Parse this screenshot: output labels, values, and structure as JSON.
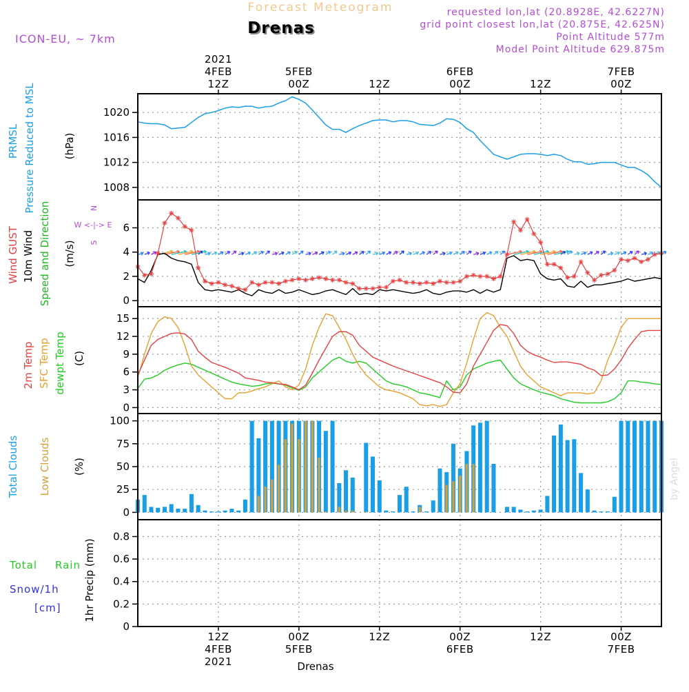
{
  "header": {
    "super_title": "Forecast Meteogram",
    "title": "Drenas",
    "model": "ICON-EU, ~ 7km",
    "info": [
      "requested lon,lat (20.8928E, 42.6227N)",
      "grid point closest lon,lat (20.875E, 42.625N)",
      "Point Altitude 577m",
      "Model Point Altitude 629.875m"
    ],
    "footer_label": "Drenas",
    "watermark": "by Angel"
  },
  "time_axis": {
    "top_labels": [
      {
        "h": 12,
        "lines": [
          "2021",
          "4FEB",
          "12Z"
        ]
      },
      {
        "h": 24,
        "lines": [
          "5FEB",
          "00Z"
        ]
      },
      {
        "h": 36,
        "lines": [
          "12Z"
        ]
      },
      {
        "h": 48,
        "lines": [
          "6FEB",
          "00Z"
        ]
      },
      {
        "h": 60,
        "lines": [
          "12Z"
        ]
      },
      {
        "h": 72,
        "lines": [
          "7FEB",
          "00Z"
        ]
      }
    ],
    "bottom_labels": [
      {
        "h": 12,
        "lines": [
          "12Z",
          "4FEB",
          "2021"
        ]
      },
      {
        "h": 24,
        "lines": [
          "00Z",
          "5FEB"
        ]
      },
      {
        "h": 36,
        "lines": [
          "12Z"
        ]
      },
      {
        "h": 48,
        "lines": [
          "00Z",
          "6FEB"
        ]
      },
      {
        "h": 60,
        "lines": [
          "12Z"
        ]
      },
      {
        "h": 72,
        "lines": [
          "00Z",
          "7FEB"
        ]
      }
    ]
  },
  "panels": {
    "pressure": {
      "label_main": "PRMSL",
      "label_sub": "Pressure Reduced to MSL",
      "unit": "(hPa)",
      "color": "#1a9fe6",
      "ticks": [
        "1008",
        "1012",
        "1016",
        "1020"
      ]
    },
    "wind": {
      "label_gust": "Wind GUST",
      "label_wind": "10m Wind",
      "label_dir": "Speed and Direction",
      "unit": "(m/s)",
      "compass": [
        "N",
        "W <-|-> E",
        "S"
      ],
      "ticks": [
        "0",
        "2",
        "4",
        "6"
      ]
    },
    "temp": {
      "label_2m": "2m Temp",
      "label_sfc": "SFC Temp",
      "label_dew": "dewpt Temp",
      "unit": "(C)",
      "ticks": [
        "0",
        "3",
        "6",
        "9",
        "12",
        "15"
      ]
    },
    "clouds": {
      "label_total": "Total Clouds",
      "label_low": "Low Clouds",
      "unit": "(%)",
      "ticks": [
        "0",
        "25",
        "50",
        "75",
        "100"
      ]
    },
    "precip": {
      "label_rain_a": "Total",
      "label_rain_b": "Rain",
      "label_snow": "Snow/1h",
      "label_cm": "[cm]",
      "unit": "1hr Precip (mm)",
      "ticks": [
        "0",
        "0.2",
        "0.4",
        "0.6",
        "0.8"
      ]
    }
  },
  "colors": {
    "pressure": "#1a9fe6",
    "gust": "#e84040",
    "wind": "#000000",
    "direction_label": "#22b822",
    "temp2m": "#e84040",
    "sfc": "#e6a030",
    "dew": "#22cc22",
    "total_cloud": "#1a9fe6",
    "low_cloud": "#d4a03c",
    "rain": "#22cc22",
    "snow": "#3030e0",
    "info": "#b44cd8",
    "super_title": "#f2c890",
    "grid": "#999999"
  },
  "chart_data": [
    {
      "type": "line",
      "name": "pressure",
      "x": [
        0,
        1,
        2,
        3,
        4,
        5,
        6,
        7,
        8,
        9,
        10,
        11,
        12,
        13,
        14,
        15,
        16,
        17,
        18,
        19,
        20,
        21,
        22,
        23,
        24,
        25,
        26,
        27,
        28,
        29,
        30,
        31,
        32,
        33,
        34,
        35,
        36,
        37,
        38,
        39,
        40,
        41,
        42,
        43,
        44,
        45,
        46,
        47,
        48,
        49,
        50,
        51,
        52,
        53,
        54,
        55,
        56,
        57,
        58,
        59,
        60,
        61,
        62,
        63,
        64,
        65,
        66,
        67,
        68,
        69,
        70,
        71,
        72,
        73,
        74,
        75,
        76,
        77,
        78
      ],
      "series": [
        {
          "values": [
            1018.5,
            1018.3,
            1018.2,
            1018.2,
            1018.0,
            1017.4,
            1017.5,
            1017.6,
            1018.4,
            1019.2,
            1019.8,
            1020.0,
            1020.3,
            1020.7,
            1020.9,
            1020.8,
            1021.0,
            1021.0,
            1020.7,
            1020.9,
            1021.0,
            1021.5,
            1021.9,
            1022.5,
            1022.1,
            1021.5,
            1020.4,
            1019.2,
            1018.0,
            1017.3,
            1017.3,
            1016.8,
            1017.4,
            1017.9,
            1018.3,
            1018.7,
            1018.8,
            1018.8,
            1018.5,
            1018.7,
            1018.7,
            1018.5,
            1018.1,
            1018.0,
            1017.9,
            1018.3,
            1019.0,
            1018.9,
            1018.4,
            1017.4,
            1016.8,
            1015.5,
            1014.4,
            1013.3,
            1012.9,
            1012.5,
            1012.9,
            1013.3,
            1013.4,
            1013.4,
            1013.3,
            1013.1,
            1013.3,
            1013.1,
            1012.5,
            1012.1,
            1012.1,
            1011.7,
            1011.8,
            1012.0,
            1012.0,
            1012.0,
            1011.6,
            1011.2,
            1011.2,
            1010.7,
            1010.0,
            1008.9,
            1008.0
          ]
        }
      ],
      "ylim": [
        1006,
        1023
      ]
    },
    {
      "type": "line",
      "name": "wind",
      "x": [
        0,
        1,
        2,
        3,
        4,
        5,
        6,
        7,
        8,
        9,
        10,
        11,
        12,
        13,
        14,
        15,
        16,
        17,
        18,
        19,
        20,
        21,
        22,
        23,
        24,
        25,
        26,
        27,
        28,
        29,
        30,
        31,
        32,
        33,
        34,
        35,
        36,
        37,
        38,
        39,
        40,
        41,
        42,
        43,
        44,
        45,
        46,
        47,
        48,
        49,
        50,
        51,
        52,
        53,
        54,
        55,
        56,
        57,
        58,
        59,
        60,
        61,
        62,
        63,
        64,
        65,
        66,
        67,
        68,
        69,
        70,
        71,
        72,
        73,
        74,
        75,
        76,
        77,
        78
      ],
      "series": [
        {
          "values": [
            2.8,
            2.1,
            2.2,
            3.9,
            6.4,
            7.2,
            6.8,
            6.1,
            5.8,
            2.7,
            1.6,
            1.4,
            1.5,
            1.3,
            1.2,
            1.0,
            0.9,
            1.5,
            1.3,
            1.5,
            1.5,
            1.4,
            1.6,
            1.7,
            1.8,
            1.7,
            1.8,
            1.9,
            1.8,
            1.7,
            1.7,
            1.5,
            1.4,
            1.0,
            1.0,
            1.0,
            1.1,
            1.1,
            1.6,
            1.7,
            1.5,
            1.5,
            1.4,
            1.5,
            1.4,
            1.6,
            1.5,
            1.5,
            1.6,
            2.0,
            2.1,
            2.0,
            2.0,
            1.8,
            2.0,
            3.8,
            6.5,
            5.8,
            6.7,
            5.5,
            4.8,
            3.0,
            3.0,
            2.7,
            1.9,
            2.0,
            3.2,
            2.3,
            1.7,
            2.1,
            2.2,
            2.5,
            3.4,
            3.3,
            3.5,
            3.2,
            3.4,
            3.8,
            3.9
          ]
        },
        {
          "values": [
            1.8,
            1.5,
            2.5,
            3.8,
            3.9,
            3.5,
            3.3,
            3.2,
            3.0,
            1.5,
            0.9,
            0.8,
            0.9,
            0.8,
            0.7,
            0.9,
            0.6,
            0.4,
            0.9,
            0.7,
            0.6,
            0.9,
            0.6,
            0.7,
            0.9,
            0.7,
            0.5,
            0.6,
            0.8,
            0.9,
            0.7,
            0.5,
            1.0,
            0.5,
            0.6,
            0.5,
            0.9,
            0.8,
            0.9,
            0.8,
            0.7,
            0.6,
            0.7,
            0.9,
            0.6,
            0.5,
            0.7,
            0.8,
            0.8,
            0.7,
            0.9,
            0.6,
            0.9,
            0.7,
            0.9,
            3.5,
            3.7,
            3.3,
            3.4,
            3.3,
            2.2,
            1.8,
            1.7,
            1.8,
            1.2,
            1.1,
            1.6,
            1.1,
            1.3,
            1.3,
            1.4,
            1.5,
            1.6,
            1.8,
            1.6,
            1.7,
            1.8,
            1.9,
            1.8
          ]
        }
      ],
      "ylim": [
        -0.5,
        8.3
      ]
    },
    {
      "type": "line",
      "name": "temperature",
      "x": [
        0,
        1,
        2,
        3,
        4,
        5,
        6,
        7,
        8,
        9,
        10,
        11,
        12,
        13,
        14,
        15,
        16,
        17,
        18,
        19,
        20,
        21,
        22,
        23,
        24,
        25,
        26,
        27,
        28,
        29,
        30,
        31,
        32,
        33,
        34,
        35,
        36,
        37,
        38,
        39,
        40,
        41,
        42,
        43,
        44,
        45,
        46,
        47,
        48,
        49,
        50,
        51,
        52,
        53,
        54,
        55,
        56,
        57,
        58,
        59,
        60,
        61,
        62,
        63,
        64,
        65,
        66,
        67,
        68,
        69,
        70,
        71,
        72,
        73,
        74,
        75,
        76,
        77,
        78
      ],
      "series": [
        {
          "values": [
            5.5,
            8.0,
            10.5,
            11.5,
            12.0,
            12.5,
            12.6,
            12.4,
            11.5,
            9.5,
            8.5,
            7.6,
            7.2,
            6.8,
            6.3,
            5.8,
            5.0,
            4.8,
            4.6,
            4.3,
            4.2,
            4.0,
            3.9,
            3.5,
            3.0,
            3.8,
            5.8,
            8.0,
            10.0,
            12.0,
            12.8,
            12.8,
            12.2,
            10.5,
            9.5,
            8.5,
            8.0,
            7.5,
            7.0,
            6.6,
            6.2,
            5.8,
            5.4,
            5.0,
            4.6,
            4.2,
            3.5,
            2.6,
            2.5,
            4.0,
            7.0,
            9.0,
            11.0,
            13.0,
            14.0,
            13.8,
            12.5,
            10.5,
            9.5,
            8.9,
            8.5,
            8.0,
            7.6,
            7.7,
            7.7,
            7.5,
            7.3,
            6.7,
            6.3,
            5.4,
            5.5,
            6.5,
            8.0,
            10.0,
            11.5,
            12.8,
            13.0,
            13.0,
            13.0
          ]
        },
        {
          "values": [
            5.0,
            9.0,
            12.5,
            14.5,
            15.3,
            15.0,
            13.5,
            10.5,
            7.0,
            5.5,
            4.5,
            3.5,
            2.5,
            1.5,
            1.5,
            2.5,
            2.5,
            2.8,
            3.2,
            3.5,
            4.0,
            4.5,
            3.5,
            3.0,
            3.8,
            6.5,
            10.5,
            13.5,
            15.8,
            15.5,
            13.5,
            11.5,
            9.0,
            7.0,
            5.5,
            4.5,
            3.5,
            3.0,
            2.8,
            2.5,
            2.0,
            1.5,
            0.5,
            0.3,
            0.5,
            0.2,
            0.5,
            2.5,
            4.0,
            7.5,
            11.5,
            15.0,
            16.0,
            15.5,
            13.5,
            12.0,
            9.5,
            7.0,
            5.5,
            4.5,
            3.5,
            3.0,
            2.5,
            2.0,
            2.5,
            2.5,
            2.5,
            2.3,
            2.5,
            4.5,
            8.0,
            10.5,
            13.5,
            15.0,
            15.0,
            15.0,
            15.0,
            15.0,
            15.0
          ]
        },
        {
          "values": [
            3.2,
            4.8,
            5.0,
            5.5,
            6.3,
            6.8,
            7.2,
            7.5,
            7.3,
            6.8,
            6.3,
            5.8,
            5.3,
            4.8,
            4.3,
            4.0,
            3.8,
            3.6,
            3.7,
            4.0,
            4.1,
            4.0,
            3.8,
            3.3,
            2.9,
            3.5,
            5.0,
            6.0,
            7.0,
            8.0,
            8.5,
            7.8,
            7.5,
            7.8,
            7.5,
            6.5,
            5.5,
            4.5,
            4.0,
            3.8,
            3.5,
            3.0,
            2.5,
            2.3,
            2.0,
            1.7,
            4.5,
            3.0,
            3.5,
            5.5,
            6.5,
            7.0,
            7.5,
            7.8,
            8.0,
            6.5,
            5.0,
            4.0,
            3.5,
            3.0,
            2.6,
            2.3,
            2.0,
            1.5,
            1.2,
            0.9,
            0.8,
            0.8,
            0.8,
            0.8,
            1.0,
            1.5,
            2.5,
            4.5,
            4.5,
            4.3,
            4.2,
            4.0,
            3.9
          ]
        }
      ],
      "ylim": [
        -1,
        17
      ]
    },
    {
      "type": "bar",
      "name": "clouds",
      "x": [
        0,
        1,
        2,
        3,
        4,
        5,
        6,
        7,
        8,
        9,
        10,
        11,
        12,
        13,
        14,
        15,
        16,
        17,
        18,
        19,
        20,
        21,
        22,
        23,
        24,
        25,
        26,
        27,
        28,
        29,
        30,
        31,
        32,
        33,
        34,
        35,
        36,
        37,
        38,
        39,
        40,
        41,
        42,
        43,
        44,
        45,
        46,
        47,
        48,
        49,
        50,
        51,
        52,
        53,
        54,
        55,
        56,
        57,
        58,
        59,
        60,
        61,
        62,
        63,
        64,
        65,
        66,
        67,
        68,
        69,
        70,
        71,
        72,
        73,
        74,
        75,
        76,
        77,
        78
      ],
      "series": [
        {
          "name": "Total Clouds",
          "values": [
            14,
            19,
            6,
            5,
            6,
            9,
            4,
            4,
            20,
            8,
            2,
            1,
            1,
            2,
            4,
            2,
            14,
            100,
            81,
            100,
            100,
            100,
            100,
            100,
            100,
            100,
            100,
            100,
            89,
            100,
            32,
            46,
            38,
            0,
            76,
            61,
            35,
            2,
            1,
            19,
            28,
            1,
            8,
            1,
            13,
            48,
            44,
            75,
            48,
            67,
            95,
            98,
            100,
            53,
            0,
            6,
            6,
            3,
            1,
            2,
            3,
            18,
            84,
            96,
            79,
            80,
            43,
            25,
            2,
            1,
            1,
            17,
            100,
            100,
            100,
            100,
            100,
            100,
            100
          ]
        },
        {
          "name": "Low Clouds",
          "values": [
            0,
            0,
            0,
            0,
            0,
            0,
            0,
            0,
            0,
            0,
            0,
            0,
            0,
            0,
            0,
            0,
            0,
            0,
            18,
            28,
            36,
            52,
            80,
            97,
            80,
            100,
            100,
            60,
            1,
            0,
            6,
            2,
            2,
            0,
            1,
            0,
            0,
            0,
            0,
            0,
            0,
            0,
            6,
            0,
            0,
            0,
            30,
            34,
            40,
            53,
            53,
            0,
            0,
            0,
            0,
            0,
            0,
            0,
            0,
            0,
            0,
            0,
            0,
            0,
            0,
            0,
            0,
            0,
            0,
            0,
            0,
            0,
            0,
            0,
            0,
            0,
            0,
            0,
            0
          ]
        }
      ],
      "ylim": [
        -8,
        108
      ]
    },
    {
      "type": "line",
      "name": "precip",
      "x": [
        0,
        78
      ],
      "series": [
        {
          "values": [
            0,
            0
          ]
        }
      ],
      "ylim": [
        0,
        0.95
      ]
    }
  ]
}
